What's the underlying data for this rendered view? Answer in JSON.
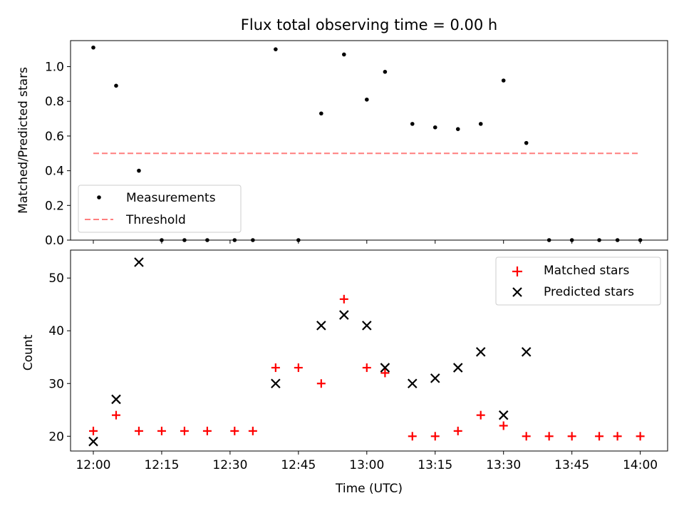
{
  "chart_data": [
    {
      "type": "scatter",
      "title": "Flux total observing time = 0.00 h",
      "xlabel": "",
      "ylabel": "Matched/Predicted stars",
      "ylim": [
        0,
        1.15
      ],
      "yticks": [
        "0.0",
        "0.2",
        "0.4",
        "0.6",
        "0.8",
        "1.0"
      ],
      "legend_placement": "lower-left",
      "series": [
        {
          "name": "Measurements",
          "marker": "dot",
          "color": "#000000",
          "x": [
            "12:00",
            "12:05",
            "12:10",
            "12:15",
            "12:20",
            "12:25",
            "12:31",
            "12:35",
            "12:40",
            "12:45",
            "12:50",
            "12:55",
            "13:00",
            "13:04",
            "13:10",
            "13:15",
            "13:20",
            "13:25",
            "13:30",
            "13:35",
            "13:40",
            "13:45",
            "13:51",
            "13:55",
            "14:00"
          ],
          "values": [
            1.11,
            0.89,
            0.4,
            0,
            0,
            0,
            0,
            0,
            1.1,
            0,
            0.73,
            1.07,
            0.81,
            0.97,
            0.67,
            0.65,
            0.64,
            0.67,
            0.92,
            0.56,
            0,
            0,
            0,
            0,
            0
          ]
        },
        {
          "name": "Threshold",
          "marker": "dashed-line",
          "color": "#ff7f7f",
          "x": [
            "12:00",
            "14:00"
          ],
          "values": [
            0.5,
            0.5
          ]
        }
      ]
    },
    {
      "type": "scatter",
      "title": "",
      "xlabel": "Time (UTC)",
      "ylabel": "Count",
      "ylim": [
        17.2,
        55.3
      ],
      "yticks": [
        "20",
        "30",
        "40",
        "50"
      ],
      "xticks": [
        "12:00",
        "12:15",
        "12:30",
        "12:45",
        "13:00",
        "13:15",
        "13:30",
        "13:45",
        "14:00"
      ],
      "xlim": [
        "11:55",
        "14:06"
      ],
      "legend_placement": "top-right",
      "series": [
        {
          "name": "Matched stars",
          "marker": "plus",
          "color": "#ff0000",
          "x": [
            "12:00",
            "12:05",
            "12:10",
            "12:15",
            "12:20",
            "12:25",
            "12:31",
            "12:35",
            "12:40",
            "12:45",
            "12:50",
            "12:55",
            "13:00",
            "13:04",
            "13:10",
            "13:15",
            "13:20",
            "13:25",
            "13:30",
            "13:35",
            "13:40",
            "13:45",
            "13:51",
            "13:55",
            "14:00"
          ],
          "values": [
            21,
            24,
            21,
            21,
            21,
            21,
            21,
            21,
            33,
            33,
            30,
            46,
            33,
            32,
            20,
            20,
            21,
            24,
            22,
            20,
            20,
            20,
            20,
            20,
            20
          ]
        },
        {
          "name": "Predicted stars",
          "marker": "x",
          "color": "#000000",
          "x": [
            "12:00",
            "12:05",
            "12:10",
            "12:40",
            "12:50",
            "12:55",
            "13:00",
            "13:04",
            "13:10",
            "13:15",
            "13:20",
            "13:25",
            "13:30",
            "13:35"
          ],
          "values": [
            19,
            27,
            53,
            30,
            41,
            43,
            41,
            33,
            30,
            31,
            33,
            36,
            24,
            36
          ]
        }
      ]
    }
  ]
}
